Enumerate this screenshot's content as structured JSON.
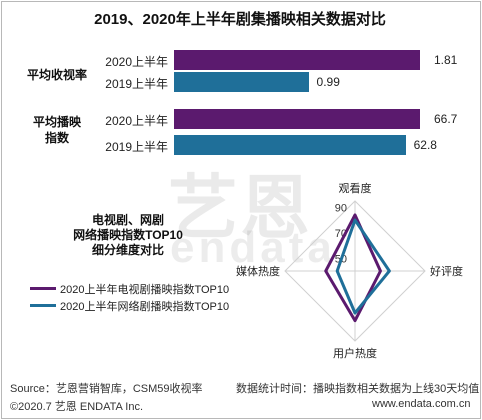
{
  "title": "2019、2020年上半年剧集播映相关数据对比",
  "chart_data": [
    {
      "type": "bar",
      "orientation": "horizontal",
      "groups": [
        {
          "label": "平均收视率",
          "series": [
            {
              "name": "2020上半年",
              "value": 1.81,
              "label": "1.81"
            },
            {
              "name": "2019上半年",
              "value": 0.99,
              "label": "0.99"
            }
          ]
        },
        {
          "label": "平均播映\n指数",
          "series": [
            {
              "name": "2020上半年",
              "value": 66.7,
              "label": "66.7"
            },
            {
              "name": "2019上半年",
              "value": 62.8,
              "label": "62.8"
            }
          ]
        }
      ]
    },
    {
      "type": "radar",
      "title_lines": [
        "电视剧、网剧",
        "网络播映指数TOP10",
        "细分维度对比"
      ],
      "axes": [
        "观看度",
        "好评度",
        "用户热度",
        "媒体热度"
      ],
      "ticks": [
        "90",
        "70",
        "50"
      ],
      "range": [
        40,
        95
      ],
      "series": [
        {
          "name": "2020上半年电视剧播映指数TOP10",
          "color": "#5b1a6e",
          "values": [
            84,
            60,
            79,
            63
          ]
        },
        {
          "name": "2020上半年网络剧播映指数TOP10",
          "color": "#1f6f99",
          "values": [
            80,
            67,
            73,
            54
          ]
        }
      ]
    }
  ],
  "colors": {
    "purple": "#5b1a6e",
    "teal": "#1f6f99"
  },
  "watermark": {
    "text": "艺恩",
    "subtext": "endata"
  },
  "footer": {
    "source": "Source：艺恩营销智库，CSM59收视率",
    "note": "数据统计时间：播映指数相关数据为上线30天均值",
    "copyright": "©2020.7 艺恩 ENDATA Inc.",
    "url": "www.endata.com.cn"
  }
}
